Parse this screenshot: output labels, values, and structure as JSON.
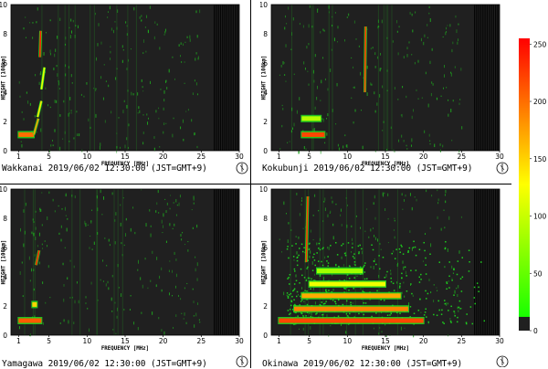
{
  "chart_data": [
    {
      "type": "heatmap",
      "station": "Wakkanai",
      "caption": "Wakkanai 2019/06/02 12:30:00 (JST=GMT+9)",
      "xlabel": "FREQUENCY [MHz]",
      "ylabel": "HEIGHT [100km]",
      "xlim": [
        0,
        30
      ],
      "ylim": [
        0,
        10
      ],
      "xticks": [
        1,
        5,
        10,
        15,
        20,
        25,
        30
      ],
      "yticks": [
        0,
        2,
        4,
        6,
        8,
        10
      ],
      "echo_traces": [
        {
          "freq": [
            1.0,
            3.0
          ],
          "height": [
            1.1,
            1.1
          ],
          "level": 200
        },
        {
          "freq": [
            3.0,
            3.6
          ],
          "height": [
            1.1,
            2.2
          ],
          "level": 180
        },
        {
          "freq": [
            3.5,
            4.0
          ],
          "height": [
            2.3,
            3.4
          ],
          "level": 140
        },
        {
          "freq": [
            4.0,
            4.4
          ],
          "height": [
            4.2,
            5.7
          ],
          "level": 120
        },
        {
          "freq": [
            3.8,
            3.9
          ],
          "height": [
            6.4,
            8.2
          ],
          "level": 240
        }
      ]
    },
    {
      "type": "heatmap",
      "station": "Kokubunji",
      "caption": "Kokubunji 2019/06/02 12:30:00 (JST=GMT+9)",
      "xlabel": "FREQUENCY [MHz]",
      "ylabel": "HEIGHT [100km]",
      "xlim": [
        0,
        30
      ],
      "ylim": [
        0,
        10
      ],
      "xticks": [
        1,
        5,
        10,
        15,
        20,
        25,
        30
      ],
      "yticks": [
        0,
        2,
        4,
        6,
        8,
        10
      ],
      "echo_traces": [
        {
          "freq": [
            4.0,
            7.0
          ],
          "height": [
            1.1,
            1.1
          ],
          "level": 220
        },
        {
          "freq": [
            4.0,
            6.5
          ],
          "height": [
            2.2,
            2.2
          ],
          "level": 90
        },
        {
          "freq": [
            12.3,
            12.4
          ],
          "height": [
            4.0,
            8.5
          ],
          "level": 230
        }
      ]
    },
    {
      "type": "heatmap",
      "station": "Yamagawa",
      "caption": "Yamagawa 2019/06/02 12:30:00 (JST=GMT+9)",
      "xlabel": "FREQUENCY [MHz]",
      "ylabel": "HEIGHT [100km]",
      "xlim": [
        0,
        30
      ],
      "ylim": [
        0,
        10
      ],
      "xticks": [
        1,
        5,
        10,
        15,
        20,
        25,
        30
      ],
      "yticks": [
        0,
        2,
        4,
        6,
        8,
        10
      ],
      "echo_traces": [
        {
          "freq": [
            1.0,
            4.0
          ],
          "height": [
            1.0,
            1.0
          ],
          "level": 210
        },
        {
          "freq": [
            2.8,
            3.4
          ],
          "height": [
            2.1,
            2.3
          ],
          "level": 150
        },
        {
          "freq": [
            3.3,
            3.7
          ],
          "height": [
            4.8,
            5.8
          ],
          "level": 240
        }
      ]
    },
    {
      "type": "heatmap",
      "station": "Okinawa",
      "caption": "Okinawa 2019/06/02 12:30:00 (JST=GMT+9)",
      "xlabel": "FREQUENCY [MHz]",
      "ylabel": "HEIGHT [100km]",
      "xlim": [
        0,
        30
      ],
      "ylim": [
        0,
        10
      ],
      "xticks": [
        1,
        5,
        10,
        15,
        20,
        25,
        30
      ],
      "yticks": [
        0,
        2,
        4,
        6,
        8,
        10
      ],
      "echo_traces": [
        {
          "freq": [
            1.0,
            20.0
          ],
          "height": [
            1.0,
            1.0
          ],
          "level": 220
        },
        {
          "freq": [
            3.0,
            18.0
          ],
          "height": [
            1.8,
            1.8
          ],
          "level": 190
        },
        {
          "freq": [
            4.0,
            17.0
          ],
          "height": [
            2.7,
            2.7
          ],
          "level": 170
        },
        {
          "freq": [
            5.0,
            15.0
          ],
          "height": [
            3.5,
            3.5
          ],
          "level": 120
        },
        {
          "freq": [
            6.0,
            12.0
          ],
          "height": [
            4.4,
            4.4
          ],
          "level": 80
        },
        {
          "freq": [
            4.6,
            4.8
          ],
          "height": [
            5.0,
            9.5
          ],
          "level": 230
        }
      ],
      "spread_region": {
        "freq": [
          2.0,
          28.0
        ],
        "height": [
          0.8,
          6.5
        ],
        "level": 40
      }
    }
  ],
  "colorbar": {
    "ticks": [
      0,
      50,
      100,
      150,
      200,
      250
    ],
    "range": [
      0,
      255
    ],
    "colors": [
      "#202020",
      "#00ff00",
      "#ffff00",
      "#ff0000"
    ]
  },
  "theme": {
    "plot_bg": "#202020",
    "noise": "#1fa51f",
    "frame": "#000000"
  }
}
